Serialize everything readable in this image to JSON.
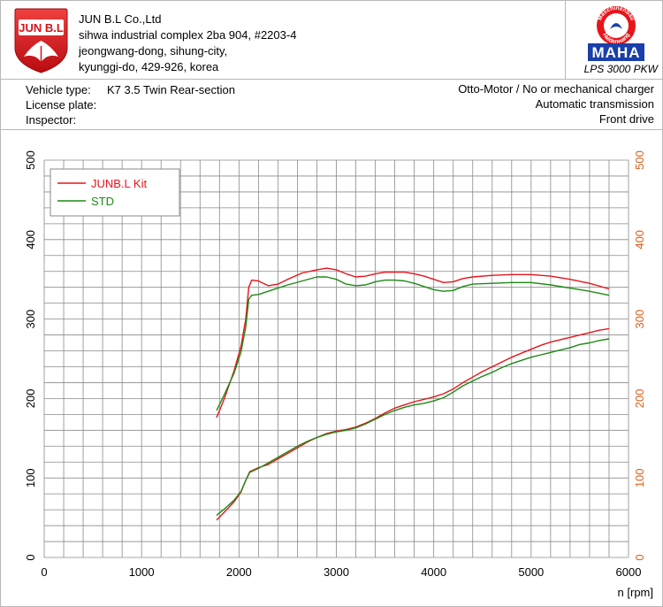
{
  "company": {
    "logo_text": "JUN B.L",
    "lines": [
      "JUN B.L Co.,Ltd",
      "sihwa industrial complex 2ba 904, #2203-4",
      "jeongwang-dong, sihung-city,",
      "kyunggi-do, 429-926, korea"
    ]
  },
  "maha": {
    "ring_top": "Maschinenbau",
    "ring_bottom": "Haldenwang",
    "brand": "MAHA",
    "model": "LPS 3000 PKW"
  },
  "vehicle": {
    "type_label": "Vehicle type:",
    "type_value": "K7 3.5 Twin Rear-section",
    "plate_label": "License plate:",
    "plate_value": "",
    "inspector_label": "Inspector:",
    "inspector_value": "",
    "engine": "Otto-Motor / No or mechanical charger",
    "transmission": "Automatic transmission",
    "drive": "Front drive"
  },
  "colors": {
    "junbl": "#e8141b",
    "std": "#1e8a14",
    "right_axis": "#e0601a",
    "left_axis": "#000000",
    "maha_blue": "#1a3fa8",
    "grid": "#8a8a8a"
  },
  "chart_data": {
    "type": "line",
    "xlabel": "n [rpm]",
    "xlim": [
      0,
      6000
    ],
    "x_ticks": [
      0,
      1000,
      2000,
      3000,
      4000,
      5000,
      6000
    ],
    "ylim_left": [
      0,
      500
    ],
    "ylim_right": [
      0,
      500
    ],
    "y_ticks": [
      0,
      100,
      200,
      300,
      400,
      500
    ],
    "grid": true,
    "legend_position": "top-left",
    "series": [
      {
        "name": "JUNB.L Kit",
        "color": "#e8141b",
        "curves": [
          [
            [
              1770,
              176
            ],
            [
              1850,
              200
            ],
            [
              1950,
              235
            ],
            [
              2020,
              265
            ],
            [
              2070,
              300
            ],
            [
              2100,
              340
            ],
            [
              2130,
              349
            ],
            [
              2200,
              348
            ],
            [
              2300,
              342
            ],
            [
              2400,
              344
            ],
            [
              2500,
              350
            ],
            [
              2650,
              358
            ],
            [
              2800,
              362
            ],
            [
              2900,
              364
            ],
            [
              3000,
              362
            ],
            [
              3100,
              357
            ],
            [
              3200,
              353
            ],
            [
              3300,
              354
            ],
            [
              3400,
              357
            ],
            [
              3500,
              359
            ],
            [
              3700,
              359
            ],
            [
              3800,
              357
            ],
            [
              3900,
              354
            ],
            [
              4000,
              350
            ],
            [
              4100,
              346
            ],
            [
              4200,
              347
            ],
            [
              4300,
              351
            ],
            [
              4400,
              353
            ],
            [
              4600,
              355
            ],
            [
              4800,
              356
            ],
            [
              5000,
              356
            ],
            [
              5200,
              354
            ],
            [
              5400,
              350
            ],
            [
              5600,
              345
            ],
            [
              5800,
              338
            ]
          ],
          [
            [
              1770,
              47
            ],
            [
              1850,
              57
            ],
            [
              1950,
              70
            ],
            [
              2020,
              82
            ],
            [
              2070,
              97
            ],
            [
              2110,
              108
            ],
            [
              2200,
              113
            ],
            [
              2300,
              117
            ],
            [
              2400,
              124
            ],
            [
              2500,
              131
            ],
            [
              2600,
              138
            ],
            [
              2700,
              145
            ],
            [
              2800,
              151
            ],
            [
              2900,
              156
            ],
            [
              3000,
              159
            ],
            [
              3100,
              161
            ],
            [
              3200,
              164
            ],
            [
              3300,
              169
            ],
            [
              3400,
              175
            ],
            [
              3500,
              182
            ],
            [
              3600,
              188
            ],
            [
              3700,
              192
            ],
            [
              3800,
              196
            ],
            [
              3900,
              199
            ],
            [
              4000,
              202
            ],
            [
              4100,
              206
            ],
            [
              4200,
              212
            ],
            [
              4300,
              220
            ],
            [
              4400,
              227
            ],
            [
              4500,
              234
            ],
            [
              4600,
              240
            ],
            [
              4700,
              246
            ],
            [
              4800,
              252
            ],
            [
              4900,
              257
            ],
            [
              5000,
              262
            ],
            [
              5100,
              267
            ],
            [
              5200,
              271
            ],
            [
              5300,
              274
            ],
            [
              5400,
              277
            ],
            [
              5500,
              280
            ],
            [
              5600,
              283
            ],
            [
              5700,
              286
            ],
            [
              5800,
              288
            ]
          ]
        ]
      },
      {
        "name": "STD",
        "color": "#1e8a14",
        "curves": [
          [
            [
              1770,
              185
            ],
            [
              1850,
              205
            ],
            [
              1950,
              232
            ],
            [
              2020,
              258
            ],
            [
              2070,
              290
            ],
            [
              2100,
              325
            ],
            [
              2130,
              330
            ],
            [
              2200,
              331
            ],
            [
              2300,
              335
            ],
            [
              2400,
              339
            ],
            [
              2500,
              343
            ],
            [
              2650,
              348
            ],
            [
              2800,
              353
            ],
            [
              2900,
              353
            ],
            [
              3000,
              350
            ],
            [
              3100,
              344
            ],
            [
              3200,
              342
            ],
            [
              3300,
              343
            ],
            [
              3400,
              347
            ],
            [
              3500,
              349
            ],
            [
              3600,
              349
            ],
            [
              3700,
              348
            ],
            [
              3800,
              345
            ],
            [
              3900,
              341
            ],
            [
              4000,
              337
            ],
            [
              4100,
              335
            ],
            [
              4200,
              336
            ],
            [
              4300,
              341
            ],
            [
              4400,
              344
            ],
            [
              4600,
              345
            ],
            [
              4800,
              346
            ],
            [
              5000,
              346
            ],
            [
              5200,
              343
            ],
            [
              5400,
              339
            ],
            [
              5600,
              335
            ],
            [
              5800,
              330
            ]
          ],
          [
            [
              1770,
              53
            ],
            [
              1850,
              61
            ],
            [
              1950,
              72
            ],
            [
              2020,
              83
            ],
            [
              2070,
              97
            ],
            [
              2110,
              107
            ],
            [
              2200,
              112
            ],
            [
              2300,
              119
            ],
            [
              2400,
              126
            ],
            [
              2500,
              133
            ],
            [
              2600,
              140
            ],
            [
              2700,
              146
            ],
            [
              2800,
              151
            ],
            [
              2900,
              155
            ],
            [
              3000,
              158
            ],
            [
              3100,
              160
            ],
            [
              3200,
              163
            ],
            [
              3300,
              168
            ],
            [
              3400,
              174
            ],
            [
              3500,
              180
            ],
            [
              3600,
              185
            ],
            [
              3700,
              189
            ],
            [
              3800,
              192
            ],
            [
              3900,
              194
            ],
            [
              4000,
              197
            ],
            [
              4100,
              201
            ],
            [
              4200,
              208
            ],
            [
              4300,
              216
            ],
            [
              4400,
              222
            ],
            [
              4500,
              228
            ],
            [
              4600,
              233
            ],
            [
              4700,
              239
            ],
            [
              4800,
              244
            ],
            [
              4900,
              248
            ],
            [
              5000,
              252
            ],
            [
              5100,
              255
            ],
            [
              5200,
              258
            ],
            [
              5300,
              261
            ],
            [
              5400,
              264
            ],
            [
              5500,
              268
            ],
            [
              5600,
              270
            ],
            [
              5700,
              273
            ],
            [
              5800,
              275
            ]
          ]
        ]
      }
    ]
  }
}
